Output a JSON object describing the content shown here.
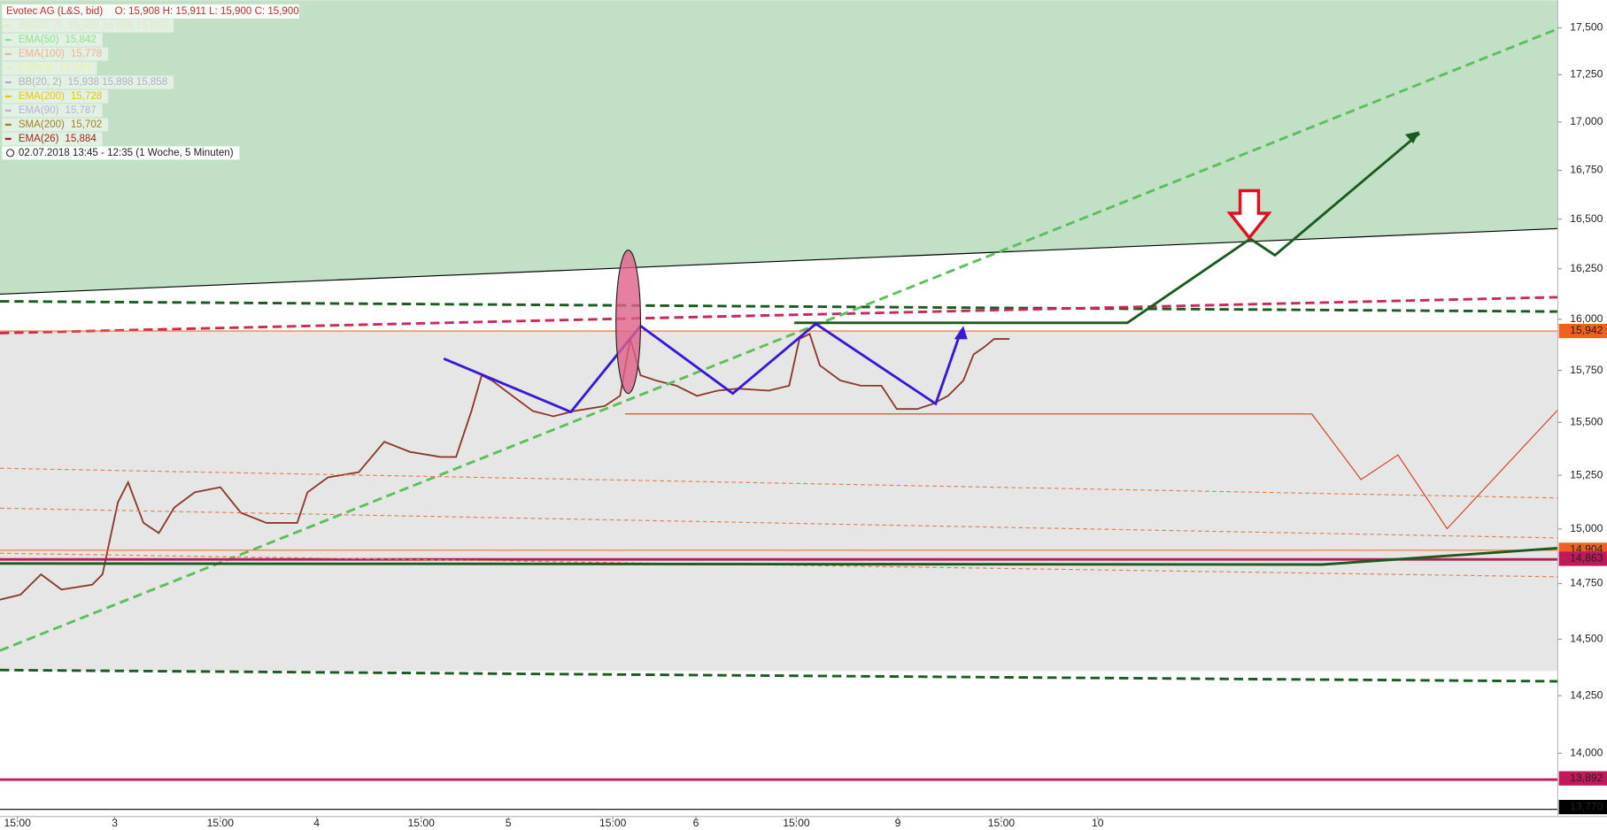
{
  "chart_data": {
    "type": "line",
    "log_scale": true,
    "xlim": [
      0,
      1520
    ],
    "ylim": [
      13730,
      17650
    ],
    "xticks": [
      {
        "value": 17,
        "label": "15:00"
      },
      {
        "value": 112,
        "label": "3"
      },
      {
        "value": 215,
        "label": "15:00"
      },
      {
        "value": 309,
        "label": "4"
      },
      {
        "value": 411,
        "label": "15:00"
      },
      {
        "value": 496,
        "label": "5"
      },
      {
        "value": 598,
        "label": "15:00"
      },
      {
        "value": 679,
        "label": "6"
      },
      {
        "value": 777,
        "label": "15:00"
      },
      {
        "value": 876,
        "label": "9"
      },
      {
        "value": 977,
        "label": "15:00"
      },
      {
        "value": 1071,
        "label": "10"
      }
    ],
    "yticks": [
      {
        "value": 14000,
        "label": "14,000"
      },
      {
        "value": 14250,
        "label": "14,250"
      },
      {
        "value": 14500,
        "label": "14,500"
      },
      {
        "value": 14750,
        "label": "14,750"
      },
      {
        "value": 15000,
        "label": "15,000"
      },
      {
        "value": 15250,
        "label": "15,250"
      },
      {
        "value": 15500,
        "label": "15,500"
      },
      {
        "value": 15750,
        "label": "15,750"
      },
      {
        "value": 16000,
        "label": "16,000"
      },
      {
        "value": 16250,
        "label": "16,250"
      },
      {
        "value": 16500,
        "label": "16,500"
      },
      {
        "value": 16750,
        "label": "16,750"
      },
      {
        "value": 17000,
        "label": "17,000"
      },
      {
        "value": 17250,
        "label": "17,250"
      },
      {
        "value": 17500,
        "label": "17,500"
      }
    ],
    "series": [
      {
        "name": "Evotec AG (L&S, bid)",
        "color": "#8a3a2a",
        "x": [
          0,
          20,
          40,
          60,
          90,
          100,
          115,
          125,
          140,
          155,
          170,
          190,
          215,
          235,
          260,
          290,
          300,
          320,
          350,
          375,
          400,
          430,
          445,
          460,
          470,
          480,
          500,
          520,
          540,
          560,
          590,
          605,
          615,
          625,
          640,
          660,
          680,
          700,
          720,
          750,
          770,
          780,
          790,
          800,
          820,
          840,
          860,
          875,
          895,
          910,
          925,
          940,
          950,
          960,
          970,
          985
        ],
        "values": [
          14677,
          14700,
          14792,
          14723,
          14745,
          14792,
          15123,
          15217,
          15028,
          14981,
          15099,
          15170,
          15194,
          15075,
          15028,
          15028,
          15170,
          15240,
          15264,
          15408,
          15360,
          15336,
          15336,
          15554,
          15726,
          15701,
          15627,
          15554,
          15529,
          15554,
          15578,
          15627,
          15903,
          15726,
          15701,
          15676,
          15627,
          15652,
          15662,
          15652,
          15676,
          15903,
          15928,
          15774,
          15701,
          15676,
          15676,
          15564,
          15564,
          15588,
          15627,
          15701,
          15828,
          15862,
          15903,
          15903
        ]
      }
    ],
    "ohlc_text": "O: 15,908  H: 15,911  L: 15,900  C: 15,900",
    "legend": [
      {
        "name": "BB(20, 2)",
        "value": "15,938  15,898  15,858",
        "color": "#e6e6c8"
      },
      {
        "name": "EMA(50)",
        "value": "15,842",
        "color": "#8fe08f"
      },
      {
        "name": "EMA(100)",
        "value": "15,778",
        "color": "#f0b090"
      },
      {
        "name": "EMA(8)",
        "value": "15,903",
        "color": "#eeeeaa"
      },
      {
        "name": "BB(20, 2)",
        "value": "15,938  15,898  15,858",
        "color": "#b0b0c0"
      },
      {
        "name": "EMA(200)",
        "value": "15,728",
        "color": "#e8c800"
      },
      {
        "name": "EMA(90)",
        "value": "15,787",
        "color": "#b8b0d8"
      },
      {
        "name": "SMA(200)",
        "value": "15,702",
        "color": "#a08020"
      },
      {
        "name": "EMA(26)",
        "value": "15,884",
        "color": "#a02818"
      }
    ],
    "period": "02.07.2018 13:45 - 12:35   (1 Woche, 5 Minuten)",
    "price_markers": [
      {
        "value": 15942,
        "label": "15,942",
        "color": "#f06020"
      },
      {
        "value": 14904,
        "label": "14,904",
        "color": "#f06020"
      },
      {
        "value": 14863,
        "label": "14,863",
        "color": "#c0185a"
      },
      {
        "value": 13892,
        "label": "13,892",
        "color": "#c0185a"
      },
      {
        "value": 13770,
        "label": "13,770",
        "color": "#000000"
      }
    ]
  }
}
